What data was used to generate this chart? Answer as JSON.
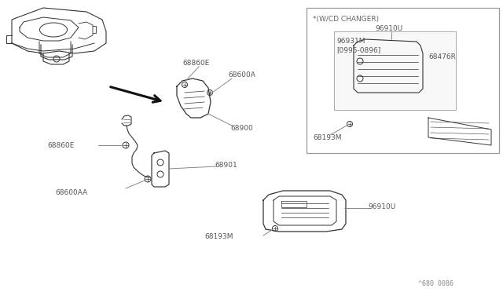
{
  "background_color": "#ffffff",
  "line_color": "#333333",
  "label_color": "#555555",
  "label_line_color": "#888888",
  "box_edge_color": "#aaaaaa",
  "box_face_color": "#ffffff",
  "footer": "^680 0086",
  "parts": {
    "68860E_top": "68860E",
    "68600A": "68600A",
    "68900": "68900",
    "68860E_mid": "68860E",
    "68901": "68901",
    "68600AA": "68600AA",
    "96910U": "96910U",
    "68193M": "68193M",
    "cd_title": "*(W/CD CHANGER)",
    "cd_96910U": "96910U",
    "cd_96931M": "96931M",
    "cd_date": "[0995-0896]",
    "cd_68476R": "68476R",
    "cd_68193M": "68193M"
  }
}
